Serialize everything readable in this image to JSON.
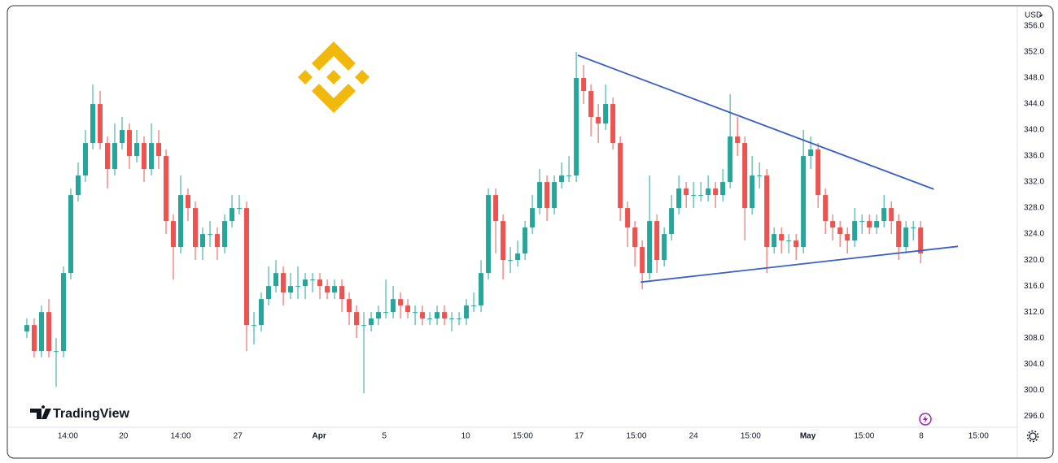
{
  "chart_data": {
    "type": "candlestick",
    "currency": "USD",
    "watermark": "TradingView",
    "up_color": "#26a69a",
    "down_color": "#ef5350",
    "open": [
      309,
      310,
      306,
      312,
      306,
      306,
      318,
      330,
      333,
      338,
      344,
      338,
      334,
      338,
      340,
      336,
      338,
      334,
      338,
      336,
      326,
      322,
      330,
      328,
      322,
      324,
      324,
      322,
      326,
      328,
      328,
      310,
      310,
      314,
      316,
      318,
      315,
      316,
      316,
      317,
      317,
      316,
      315,
      316,
      314,
      312,
      310,
      310,
      311,
      312,
      312,
      314,
      313,
      312,
      312,
      311,
      311,
      312,
      311,
      311,
      311,
      313,
      313,
      318,
      330,
      326,
      320,
      320,
      321,
      325,
      328,
      332,
      328,
      332,
      333,
      333,
      348,
      346,
      342,
      341,
      344,
      338,
      328,
      325,
      322,
      318,
      326,
      320,
      324,
      328,
      331,
      330,
      330,
      330,
      331,
      330,
      332,
      339,
      338,
      328,
      333,
      333,
      322,
      324,
      323,
      323,
      322,
      336,
      337,
      330,
      326,
      325,
      324,
      323,
      326,
      326,
      325,
      326,
      328,
      326,
      322,
      325,
      325
    ],
    "high": [
      311,
      311,
      313,
      314,
      308,
      319,
      331,
      335,
      340,
      347,
      346,
      339,
      341,
      342,
      341,
      340,
      339,
      341,
      340,
      337,
      327,
      333,
      331,
      329,
      325,
      326,
      325,
      327,
      330,
      330,
      329,
      312,
      315,
      319,
      320,
      319,
      318,
      319,
      318,
      318,
      318,
      317,
      317,
      317,
      315,
      313,
      312,
      312,
      313,
      317,
      316,
      315,
      314,
      313,
      313,
      312,
      313,
      313,
      312,
      312,
      314,
      315,
      320,
      331,
      331,
      327,
      322,
      323,
      326,
      330,
      334,
      333,
      333,
      335,
      336,
      352,
      350,
      347,
      344,
      347,
      345,
      339,
      329,
      326,
      323,
      333,
      327,
      325,
      330,
      333,
      332,
      332,
      332,
      333,
      332,
      334,
      345.5,
      342,
      339,
      336,
      335,
      334,
      325,
      325,
      324,
      324,
      340,
      339,
      338,
      331,
      327,
      326,
      325,
      328,
      327,
      327,
      327,
      330,
      329,
      327,
      326,
      326,
      326
    ],
    "low": [
      308,
      305,
      305,
      305,
      300.5,
      305,
      317,
      329,
      332,
      337,
      337,
      331,
      333,
      337,
      334,
      335,
      332,
      333,
      334,
      324,
      317,
      321,
      326,
      320,
      320,
      322,
      320,
      321,
      325,
      327,
      306,
      307,
      309,
      313,
      315,
      313,
      314,
      314,
      314,
      315,
      314,
      314,
      314,
      312,
      310,
      308,
      299.5,
      309,
      310,
      311,
      311,
      311,
      311,
      310,
      310,
      310,
      310,
      310,
      309,
      310,
      310,
      312,
      312,
      317,
      321,
      317,
      318,
      319,
      320,
      324,
      327,
      326,
      327,
      331,
      332,
      332,
      344,
      339,
      338,
      340,
      337,
      326,
      322,
      319,
      315.5,
      317,
      318,
      319,
      323,
      327,
      328,
      328,
      329,
      329,
      328,
      329,
      331,
      336,
      323,
      327,
      331,
      318,
      321,
      321,
      321,
      320,
      321,
      334,
      328,
      324,
      323,
      322,
      321,
      322,
      324,
      324,
      324,
      325,
      324,
      320,
      321,
      323,
      319.5
    ],
    "close": [
      310,
      306,
      312,
      306,
      306,
      318,
      330,
      333,
      338,
      344,
      338,
      334,
      338,
      340,
      336,
      338,
      334,
      338,
      336,
      326,
      322,
      330,
      328,
      322,
      324,
      324,
      322,
      326,
      328,
      328,
      310,
      310,
      314,
      316,
      318,
      315,
      316,
      316,
      317,
      317,
      316,
      315,
      316,
      314,
      312,
      310,
      310,
      311,
      312,
      312,
      314,
      313,
      312,
      312,
      311,
      311,
      312,
      311,
      311,
      311,
      313,
      313,
      318,
      330,
      326,
      320,
      320,
      321,
      325,
      328,
      332,
      328,
      332,
      333,
      333,
      348,
      346,
      342,
      341,
      344,
      338,
      328,
      325,
      322,
      318,
      326,
      320,
      324,
      328,
      331,
      330,
      330,
      330,
      331,
      330,
      332,
      339,
      338,
      328,
      333,
      333,
      322,
      324,
      323,
      323,
      322,
      336,
      337,
      330,
      326,
      325,
      324,
      323,
      326,
      326,
      325,
      326,
      328,
      326,
      322,
      325,
      325,
      321
    ],
    "trendlines": [
      {
        "color": "#3a5fc8",
        "x": [
          75.2,
          123.8
        ],
        "values": [
          351.5,
          330.9
        ]
      },
      {
        "color": "#3a5fc8",
        "x": [
          83.8,
          127.1
        ],
        "values": [
          316.6,
          322.1
        ]
      }
    ],
    "xlim": [
      -0.33,
      135.2
    ],
    "xticks": [
      {
        "value": 5.6,
        "label": "14:00"
      },
      {
        "value": 13.2,
        "label": "20"
      },
      {
        "value": 21,
        "label": "14:00"
      },
      {
        "value": 28.8,
        "label": "27"
      },
      {
        "value": 39.9,
        "label": "Apr"
      },
      {
        "value": 48.8,
        "label": "5"
      },
      {
        "value": 59.9,
        "label": "10"
      },
      {
        "value": 67.7,
        "label": "15:00"
      },
      {
        "value": 75.4,
        "label": "17"
      },
      {
        "value": 83.2,
        "label": "15:00"
      },
      {
        "value": 91,
        "label": "24"
      },
      {
        "value": 98.8,
        "label": "15:00"
      },
      {
        "value": 106.6,
        "label": "May"
      },
      {
        "value": 114.3,
        "label": "15:00"
      },
      {
        "value": 122.1,
        "label": "8"
      },
      {
        "value": 129.9,
        "label": "15:00"
      }
    ],
    "ylim": [
      294.4,
      357.5
    ],
    "yticks": [
      {
        "value": 356,
        "label": "356.0"
      },
      {
        "value": 352,
        "label": "352.0"
      },
      {
        "value": 348,
        "label": "348.0"
      },
      {
        "value": 344,
        "label": "344.0"
      },
      {
        "value": 340,
        "label": "340.0"
      },
      {
        "value": 336,
        "label": "336.0"
      },
      {
        "value": 332,
        "label": "332.0"
      },
      {
        "value": 328,
        "label": "328.0"
      },
      {
        "value": 324,
        "label": "324.0"
      },
      {
        "value": 320,
        "label": "320.0"
      },
      {
        "value": 316,
        "label": "316.0"
      },
      {
        "value": 312,
        "label": "312.0"
      },
      {
        "value": 308,
        "label": "308.0"
      },
      {
        "value": 304,
        "label": "304.0"
      },
      {
        "value": 300,
        "label": "300.0"
      },
      {
        "value": 296,
        "label": "296.0"
      }
    ]
  }
}
